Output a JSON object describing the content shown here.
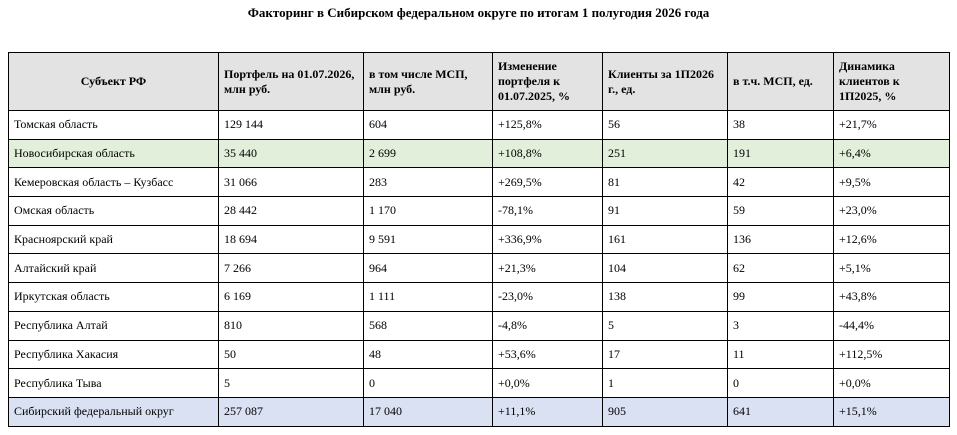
{
  "title": "Факторинг в Сибирском федеральном округе по итогам 1 полугодия 2026 года",
  "table": {
    "header": [
      "Субъект РФ",
      "Портфель на 01.07.2026, млн руб.",
      "в том числе МСП, млн руб.",
      "Изменение портфеля к 01.07.2025, %",
      "Клиенты за 1П2026 г., ед.",
      "в т.ч. МСП, ед.",
      "Динамика клиентов к 1П2025, %"
    ],
    "rows": [
      [
        "Томская область",
        "129 144",
        "604",
        "+125,8%",
        "56",
        "38",
        "+21,7%"
      ],
      [
        "Новосибирская область",
        "35 440",
        "2 699",
        "+108,8%",
        "251",
        "191",
        "+6,4%"
      ],
      [
        "Кемеровская область – Кузбасс",
        "31 066",
        "283",
        "+269,5%",
        "81",
        "42",
        "+9,5%"
      ],
      [
        "Омская область",
        "28 442",
        "1 170",
        "-78,1%",
        "91",
        "59",
        "+23,0%"
      ],
      [
        "Красноярский край",
        "18 694",
        "9 591",
        "+336,9%",
        "161",
        "136",
        "+12,6%"
      ],
      [
        "Алтайский край",
        "7 266",
        "964",
        "+21,3%",
        "104",
        "62",
        "+5,1%"
      ],
      [
        "Иркутская область",
        "6 169",
        "1 111",
        "-23,0%",
        "138",
        "99",
        "+43,8%"
      ],
      [
        "Республика Алтай",
        "810",
        "568",
        "-4,8%",
        "5",
        "3",
        "-44,4%"
      ],
      [
        "Республика Хакасия",
        "50",
        "48",
        "+53,6%",
        "17",
        "11",
        "+112,5%"
      ],
      [
        "Республика Тыва",
        "5",
        "0",
        "+0,0%",
        "1",
        "0",
        "+0,0%"
      ],
      [
        "Сибирский федеральный округ",
        "257 087",
        "17 040",
        "+11,1%",
        "905",
        "641",
        "+15,1%"
      ]
    ]
  }
}
